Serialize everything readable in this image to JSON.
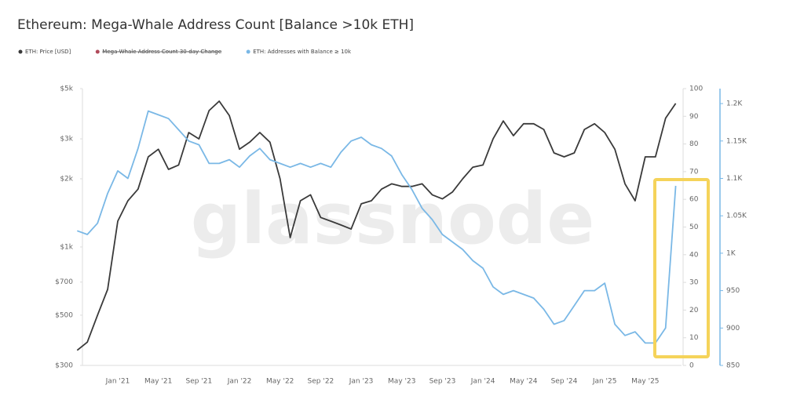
{
  "chart_data": {
    "type": "line",
    "title": "Ethereum: Mega-Whale Address Count [Balance >10k ETH]",
    "watermark": "glassnode",
    "categories": [
      null,
      null,
      null,
      null,
      "Jan '21",
      null,
      null,
      null,
      "May '21",
      null,
      null,
      null,
      "Sep '21",
      null,
      null,
      null,
      "Jan '22",
      null,
      null,
      null,
      "May '22",
      null,
      null,
      null,
      "Sep '22",
      null,
      null,
      null,
      "Jan '23",
      null,
      null,
      null,
      "May '23",
      null,
      null,
      null,
      "Sep '23",
      null,
      null,
      null,
      "Jan '24",
      null,
      null,
      null,
      "May '24",
      null,
      null,
      null,
      "Sep '24",
      null,
      null,
      null,
      "Jan '25",
      null,
      null,
      null,
      "May '25",
      null,
      null,
      null
    ],
    "series": [
      {
        "name": "ETH: Price [USD]",
        "color": "#3a3a3a",
        "axis": "y",
        "values": [
          350,
          380,
          500,
          650,
          1300,
          1600,
          1800,
          2500,
          2700,
          2200,
          2300,
          3200,
          3000,
          4000,
          4400,
          3800,
          2700,
          2900,
          3200,
          2900,
          2000,
          1100,
          1600,
          1700,
          1350,
          1300,
          1250,
          1200,
          1550,
          1600,
          1800,
          1900,
          1850,
          1850,
          1900,
          1700,
          1630,
          1750,
          2000,
          2250,
          2300,
          3000,
          3600,
          3100,
          3500,
          3500,
          3300,
          2600,
          2500,
          2600,
          3300,
          3500,
          3200,
          2700,
          1900,
          1600,
          2500,
          2500,
          3700,
          4300
        ]
      },
      {
        "name": "Mega-Whale Address Count 30-day Change",
        "color": "#b04a5a",
        "axis": "y2",
        "hidden": true
      },
      {
        "name": "ETH: Addresses with Balance ≥ 10k",
        "color": "#7ab8e6",
        "axis": "y3",
        "values": [
          1030,
          1025,
          1040,
          1080,
          1110,
          1100,
          1140,
          1190,
          1185,
          1180,
          1165,
          1150,
          1145,
          1120,
          1120,
          1125,
          1115,
          1130,
          1140,
          1125,
          1120,
          1115,
          1120,
          1115,
          1120,
          1115,
          1135,
          1150,
          1155,
          1145,
          1140,
          1130,
          1105,
          1085,
          1060,
          1045,
          1025,
          1015,
          1005,
          990,
          980,
          955,
          945,
          950,
          945,
          940,
          925,
          905,
          910,
          930,
          950,
          950,
          960,
          905,
          890,
          895,
          880,
          880,
          900,
          1090
        ]
      }
    ],
    "log_y": true,
    "ylim": [
      300,
      5000
    ],
    "yticks": [
      {
        "value": 300,
        "label": "$300"
      },
      {
        "value": 500,
        "label": "$500"
      },
      {
        "value": 700,
        "label": "$700"
      },
      {
        "value": 1000,
        "label": "$1k"
      },
      {
        "value": 2000,
        "label": "$2k"
      },
      {
        "value": 3000,
        "label": "$3k"
      },
      {
        "value": 5000,
        "label": "$5k"
      }
    ],
    "y2lim": [
      0,
      100
    ],
    "y2ticks": [
      0,
      10,
      20,
      30,
      40,
      50,
      60,
      70,
      80,
      90,
      100
    ],
    "y3lim": [
      850,
      1220
    ],
    "y3ticks": [
      850,
      900,
      950,
      {
        "value": 1000,
        "label": "1K"
      },
      {
        "value": 1050,
        "label": "1.05K"
      },
      {
        "value": 1100,
        "label": "1.1K"
      },
      {
        "value": 1150,
        "label": "1.15K"
      },
      {
        "value": 1200,
        "label": "1.2K"
      }
    ],
    "highlight_color": "#f5d35a"
  }
}
